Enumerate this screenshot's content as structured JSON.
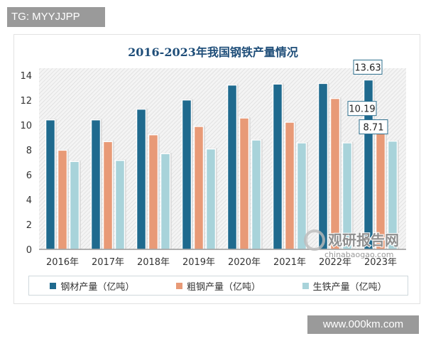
{
  "badge_top": "TG: MYYJJPP",
  "badge_bottom": "www.000km.com",
  "watermark": {
    "cn": "观研报告网",
    "en": "chinabaogao.com"
  },
  "chart_data": {
    "type": "bar",
    "title": "2016-2023年我国钢铁产量情况",
    "categories": [
      "2016年",
      "2017年",
      "2018年",
      "2019年",
      "2020年",
      "2021年",
      "2022年",
      "2023年"
    ],
    "series": [
      {
        "name": "钢材产量（亿吨）",
        "color": "#1f6a8e",
        "values": [
          10.42,
          10.42,
          11.28,
          12.02,
          13.22,
          13.3,
          13.35,
          13.63
        ]
      },
      {
        "name": "粗钢产量（亿吨）",
        "color": "#e89a77",
        "values": [
          7.98,
          8.67,
          9.22,
          9.89,
          10.57,
          10.23,
          12.14,
          10.19
        ]
      },
      {
        "name": "生铁产量（亿吨）",
        "color": "#a8d3da",
        "values": [
          7.07,
          7.16,
          7.7,
          8.08,
          8.8,
          8.57,
          8.57,
          8.71
        ]
      }
    ],
    "data_labels": [
      {
        "series": 0,
        "index": 7,
        "text": "13.63"
      },
      {
        "series": 1,
        "index": 7,
        "text": "10.19"
      },
      {
        "series": 2,
        "index": 7,
        "text": "8.71"
      }
    ],
    "yticks": [
      "0",
      "2",
      "4",
      "6",
      "8",
      "10",
      "12",
      "14"
    ],
    "ylim": [
      0,
      14
    ],
    "grid": false,
    "legend": "bottom"
  }
}
